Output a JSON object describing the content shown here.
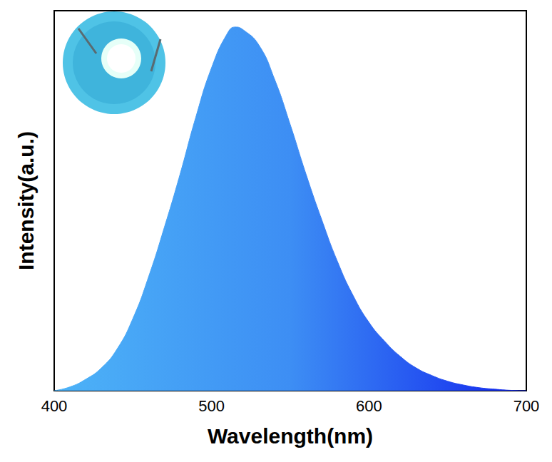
{
  "chart_data": {
    "type": "area",
    "x_label": "Wavelength(nm)",
    "y_label": "Intensity(a.u.)",
    "x": [
      400,
      410,
      420,
      430,
      440,
      450,
      460,
      470,
      480,
      490,
      500,
      510,
      515,
      520,
      530,
      540,
      550,
      560,
      570,
      580,
      590,
      600,
      610,
      620,
      630,
      640,
      650,
      660,
      670,
      680,
      690,
      700
    ],
    "values": [
      0.0,
      0.01,
      0.03,
      0.06,
      0.11,
      0.19,
      0.3,
      0.43,
      0.57,
      0.72,
      0.85,
      0.94,
      0.957,
      0.95,
      0.91,
      0.82,
      0.7,
      0.57,
      0.45,
      0.34,
      0.25,
      0.18,
      0.13,
      0.09,
      0.06,
      0.04,
      0.025,
      0.015,
      0.008,
      0.004,
      0.001,
      0.0
    ],
    "color": "#3d8ef4",
    "xlim": [
      400,
      700
    ],
    "xticks": [
      400,
      500,
      600,
      700
    ],
    "ylim": [
      0,
      1
    ],
    "tick_labels": "x",
    "grid": false
  }
}
